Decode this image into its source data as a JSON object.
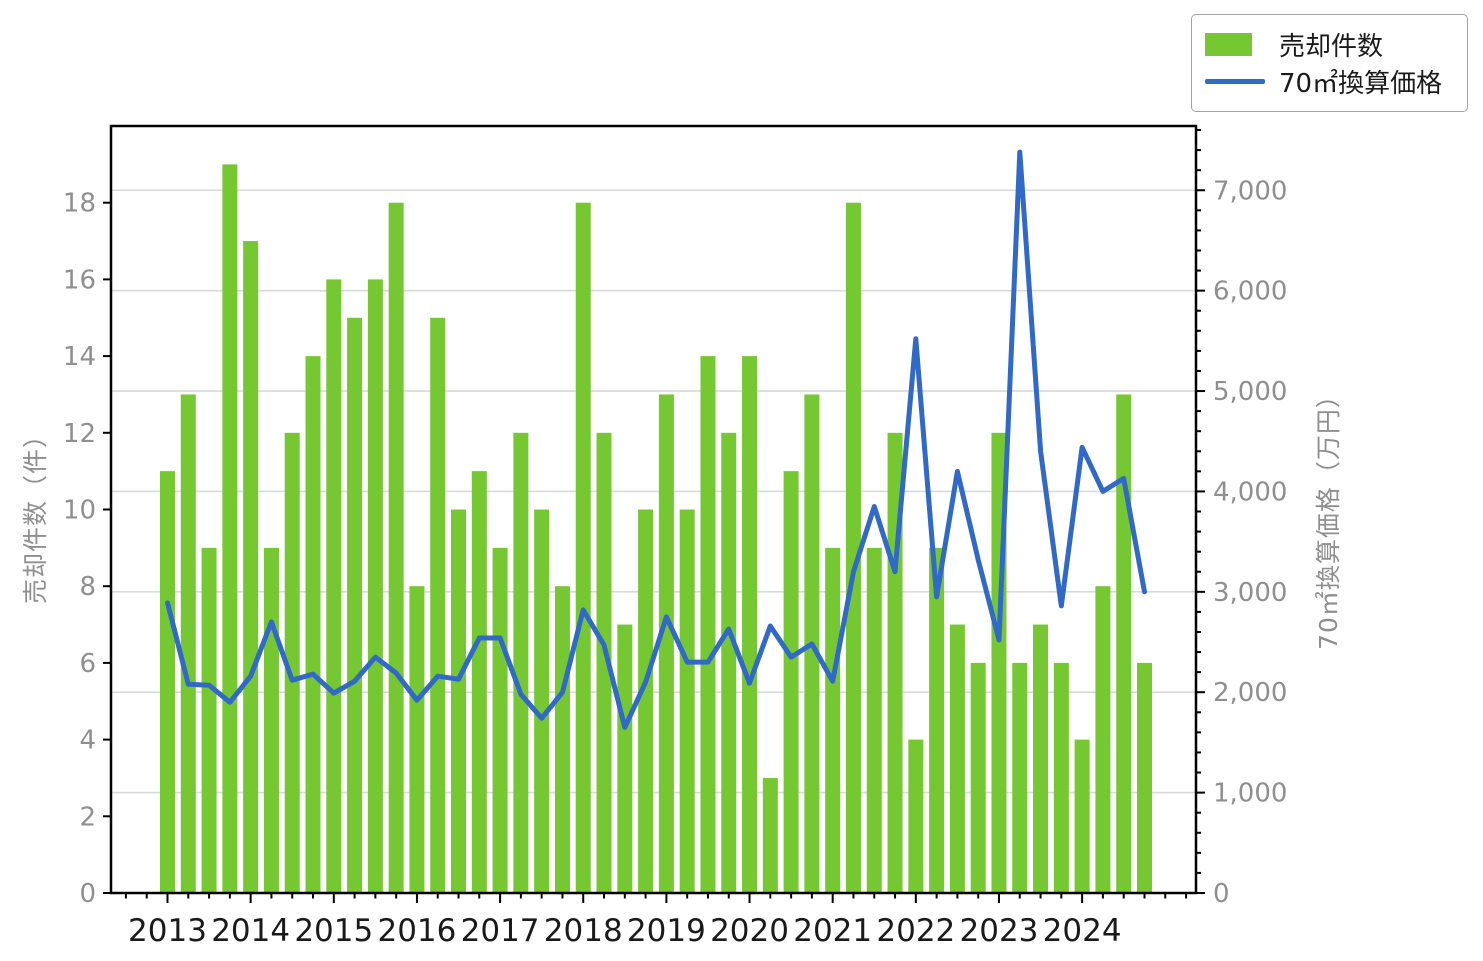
{
  "colors": {
    "bar": "#76C832",
    "line": "#3069C8",
    "grid": "#d9d9d9",
    "axis": "#000000",
    "tick_label": "#8f8f8f",
    "x_label": "#1a1a1a"
  },
  "legend": {
    "items": [
      {
        "label": "売却件数",
        "type": "bar"
      },
      {
        "label": "70㎡換算価格",
        "type": "line"
      }
    ]
  },
  "axes": {
    "left": {
      "title": "売却件数（件）",
      "tick_values": [
        0,
        2,
        4,
        6,
        8,
        10,
        12,
        14,
        16,
        18
      ],
      "tick_labels": [
        "0",
        "2",
        "4",
        "6",
        "8",
        "10",
        "12",
        "14",
        "16",
        "18"
      ]
    },
    "right": {
      "title": "70㎡換算価格（万円）",
      "tick_values": [
        0,
        1000,
        2000,
        3000,
        4000,
        5000,
        6000,
        7000
      ],
      "tick_labels": [
        "0",
        "1,000",
        "2,000",
        "3,000",
        "4,000",
        "5,000",
        "6,000",
        "7,000"
      ],
      "minor_step": 200
    },
    "x": {
      "years": [
        "2013",
        "2014",
        "2015",
        "2016",
        "2017",
        "2018",
        "2019",
        "2020",
        "2021",
        "2022",
        "2023",
        "2024"
      ]
    }
  },
  "chart_data": {
    "type": "bar+line dual-axis",
    "x_start": "2013 Q1",
    "x_freq": "quarterly",
    "x_tick_labels": [
      "2013",
      "2014",
      "2015",
      "2016",
      "2017",
      "2018",
      "2019",
      "2020",
      "2021",
      "2022",
      "2023",
      "2024"
    ],
    "left_ylim": [
      0,
      20
    ],
    "right_ylim": [
      0,
      7640
    ],
    "grid": "horizontal gridlines at right-axis majors (1000..7000), no vertical grid",
    "legend_position": "top-right outside plot",
    "series": [
      {
        "name": "売却件数",
        "type": "bar",
        "yaxis": "left",
        "values": [
          11,
          13,
          9,
          19,
          17,
          9,
          12,
          14,
          16,
          15,
          16,
          18,
          8,
          15,
          10,
          11,
          9,
          12,
          10,
          8,
          18,
          12,
          7,
          10,
          13,
          10,
          14,
          12,
          14,
          3,
          11,
          13,
          9,
          18,
          9,
          12,
          4,
          9,
          7,
          6,
          12,
          6,
          7,
          6,
          4,
          8,
          13,
          6
        ]
      },
      {
        "name": "70㎡換算価格",
        "type": "line",
        "yaxis": "right",
        "values": [
          2890,
          2080,
          2070,
          1900,
          2160,
          2700,
          2120,
          2180,
          1990,
          2110,
          2350,
          2190,
          1920,
          2160,
          2130,
          2540,
          2540,
          1980,
          1740,
          2000,
          2820,
          2470,
          1650,
          2100,
          2750,
          2300,
          2300,
          2630,
          2090,
          2660,
          2350,
          2480,
          2110,
          3200,
          3850,
          3200,
          5520,
          2950,
          4200,
          3320,
          2520,
          7380,
          4400,
          2860,
          4440,
          4000,
          4130,
          3000
        ]
      }
    ]
  }
}
